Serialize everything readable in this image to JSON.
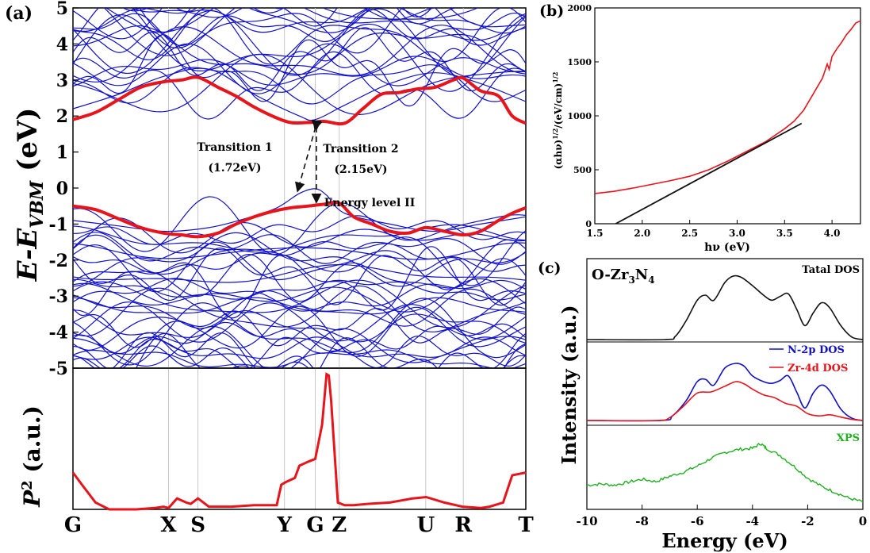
{
  "chart_data": [
    {
      "panel": "(a)",
      "type": "line",
      "subtype": "band-structure",
      "ylabel_main": "E-E",
      "ylabel_sub": "VBM",
      "ylabel_unit": " (eV)",
      "ylim": [
        -5,
        5
      ],
      "yticks": [
        -5,
        -4,
        -3,
        -2,
        -1,
        0,
        1,
        2,
        3,
        4,
        5
      ],
      "kpoint_labels": [
        "G",
        "X",
        "S",
        "Y",
        "G",
        "Z",
        "U",
        "R",
        "T"
      ],
      "kpoint_positions": [
        0,
        0.211,
        0.276,
        0.467,
        0.535,
        0.588,
        0.779,
        0.862,
        1.0
      ],
      "band_color": "#1010cc",
      "highlight_color": "#e8141b",
      "conduction_band_min": {
        "x": [
          0,
          0.05,
          0.1,
          0.15,
          0.2,
          0.24,
          0.276,
          0.32,
          0.36,
          0.4,
          0.44,
          0.48,
          0.52,
          0.555,
          0.6,
          0.64,
          0.68,
          0.72,
          0.76,
          0.8,
          0.84,
          0.862,
          0.9,
          0.94,
          0.97,
          1.0
        ],
        "y": [
          1.9,
          2.1,
          2.45,
          2.8,
          2.95,
          3.0,
          3.07,
          2.8,
          2.55,
          2.25,
          2.0,
          1.82,
          1.82,
          1.85,
          1.8,
          2.2,
          2.6,
          2.65,
          2.75,
          2.8,
          3.0,
          3.05,
          2.7,
          2.55,
          2.0,
          1.8
        ]
      },
      "valence_band_max": {
        "x": [
          0,
          0.05,
          0.1,
          0.15,
          0.2,
          0.24,
          0.276,
          0.32,
          0.36,
          0.4,
          0.44,
          0.48,
          0.52,
          0.555,
          0.588,
          0.62,
          0.66,
          0.7,
          0.74,
          0.779,
          0.82,
          0.862,
          0.9,
          0.94,
          0.97,
          1.0
        ],
        "y": [
          -0.5,
          -0.6,
          -0.85,
          -1.1,
          -1.25,
          -1.3,
          -1.35,
          -1.25,
          -1.0,
          -0.8,
          -0.65,
          -0.55,
          -0.5,
          -0.45,
          -0.42,
          -0.8,
          -1.0,
          -1.2,
          -1.25,
          -1.1,
          -1.2,
          -1.3,
          -1.2,
          -0.9,
          -0.7,
          -0.55
        ]
      },
      "annotations": [
        {
          "text": "Transition 1",
          "x": 0.41,
          "y": 0.95
        },
        {
          "text": "(1.72eV)",
          "x": 0.41,
          "y": 0.3
        },
        {
          "text": "Transition 2",
          "x": 0.7,
          "y": 0.95
        },
        {
          "text": "(2.15eV)",
          "x": 0.7,
          "y": 0.3
        },
        {
          "text": "Energy level II",
          "x": 0.675,
          "y": -0.6
        }
      ]
    },
    {
      "panel": "(a)",
      "type": "line",
      "subtype": "transition-probability",
      "ylabel": "P",
      "ylabel_sup": "2",
      "ylabel_unit": " (a.u.)",
      "ylim": [
        0,
        1
      ],
      "color": "#e8141b",
      "x": [
        0,
        0.02,
        0.05,
        0.08,
        0.1,
        0.14,
        0.18,
        0.2,
        0.211,
        0.23,
        0.25,
        0.26,
        0.276,
        0.3,
        0.35,
        0.4,
        0.45,
        0.46,
        0.47,
        0.49,
        0.5,
        0.52,
        0.535,
        0.55,
        0.56,
        0.565,
        0.57,
        0.585,
        0.6,
        0.62,
        0.65,
        0.7,
        0.75,
        0.78,
        0.82,
        0.86,
        0.9,
        0.92,
        0.95,
        0.97,
        1.0
      ],
      "y": [
        0.27,
        0.18,
        0.05,
        0.0,
        0.0,
        0.0,
        0.01,
        0.02,
        0.01,
        0.08,
        0.05,
        0.04,
        0.08,
        0.02,
        0.02,
        0.03,
        0.03,
        0.18,
        0.2,
        0.23,
        0.32,
        0.35,
        0.37,
        0.62,
        0.99,
        0.98,
        0.8,
        0.05,
        0.03,
        0.03,
        0.04,
        0.05,
        0.08,
        0.09,
        0.05,
        0.02,
        0.01,
        0.02,
        0.05,
        0.25,
        0.27
      ]
    },
    {
      "panel": "(b)",
      "type": "line",
      "subtype": "tauc-plot",
      "xlabel": "hν (eV)",
      "ylabel": "(αhν)",
      "ylabel_sup1": "1/2",
      "ylabel_mid": "/(eV/cm)",
      "ylabel_sup2": "1/2",
      "xlim": [
        1.5,
        4.3
      ],
      "ylim": [
        0,
        2000
      ],
      "xticks": [
        1.5,
        2.0,
        2.5,
        3.0,
        3.5,
        4.0
      ],
      "yticks": [
        0,
        500,
        1000,
        1500,
        2000
      ],
      "series": [
        {
          "color": "#e8141b",
          "x": [
            1.5,
            1.7,
            1.9,
            2.1,
            2.3,
            2.5,
            2.7,
            2.9,
            3.1,
            3.3,
            3.5,
            3.6,
            3.7,
            3.8,
            3.9,
            3.95,
            3.97,
            4.0,
            4.05,
            4.1,
            4.15,
            4.2,
            4.25,
            4.3
          ],
          "y": [
            280,
            300,
            330,
            365,
            400,
            440,
            500,
            580,
            670,
            760,
            880,
            950,
            1050,
            1200,
            1350,
            1480,
            1430,
            1550,
            1620,
            1680,
            1750,
            1800,
            1860,
            1880
          ]
        },
        {
          "color": "#111111",
          "x": [
            1.72,
            3.68
          ],
          "y": [
            0,
            930
          ]
        }
      ]
    },
    {
      "panel": "(c)",
      "type": "line",
      "subtype": "density-of-states",
      "title": "O-Zr",
      "title_sub1": "3",
      "title_mid": "N",
      "title_sub2": "4",
      "xlabel": "Energy (eV)",
      "ylabel": "Intensity (a.u.)",
      "xlim": [
        -10,
        0
      ],
      "xticks": [
        -10,
        -8,
        -6,
        -4,
        -2,
        0
      ],
      "series": [
        {
          "name": "Tatal DOS",
          "color": "#111111",
          "x": [
            -10,
            -7.2,
            -6.8,
            -6.4,
            -6.0,
            -5.7,
            -5.4,
            -5.0,
            -4.7,
            -4.4,
            -4.0,
            -3.6,
            -3.3,
            -3.0,
            -2.7,
            -2.4,
            -2.1,
            -1.8,
            -1.5,
            -1.2,
            -0.8,
            -0.4,
            0
          ],
          "y": [
            0,
            0,
            0.05,
            0.3,
            0.62,
            0.7,
            0.62,
            0.9,
            1.0,
            0.98,
            0.85,
            0.7,
            0.62,
            0.68,
            0.72,
            0.48,
            0.22,
            0.42,
            0.58,
            0.5,
            0.22,
            0.04,
            0
          ]
        },
        {
          "name": "N-2p DOS",
          "color": "#1010cc",
          "x": [
            -10,
            -7.3,
            -6.9,
            -6.4,
            -6.0,
            -5.7,
            -5.4,
            -5.0,
            -4.6,
            -4.3,
            -4.0,
            -3.6,
            -3.3,
            -3.0,
            -2.7,
            -2.4,
            -2.1,
            -1.8,
            -1.5,
            -1.2,
            -0.8,
            -0.4,
            0
          ],
          "y": [
            0,
            0,
            0.08,
            0.35,
            0.68,
            0.72,
            0.62,
            0.92,
            1.0,
            0.95,
            0.78,
            0.68,
            0.65,
            0.7,
            0.78,
            0.5,
            0.22,
            0.48,
            0.62,
            0.52,
            0.2,
            0.04,
            0
          ]
        },
        {
          "name": "Zr-4d DOS",
          "color": "#e8141b",
          "x": [
            -10,
            -7.5,
            -7.0,
            -6.5,
            -6.0,
            -5.5,
            -5.0,
            -4.6,
            -4.3,
            -4.0,
            -3.6,
            -3.2,
            -2.8,
            -2.4,
            -2.0,
            -1.6,
            -1.2,
            -0.8,
            -0.4,
            0
          ],
          "y": [
            0,
            0,
            0.05,
            0.25,
            0.48,
            0.5,
            0.6,
            0.68,
            0.64,
            0.55,
            0.45,
            0.4,
            0.3,
            0.25,
            0.12,
            0.08,
            0.1,
            0.06,
            0.02,
            0
          ]
        },
        {
          "name": "XPS",
          "color": "#20b020",
          "x": [
            -10,
            -9.5,
            -9.0,
            -8.5,
            -8.0,
            -7.5,
            -7.0,
            -6.5,
            -6.0,
            -5.5,
            -5.0,
            -4.5,
            -4.0,
            -3.7,
            -3.5,
            -3.0,
            -2.5,
            -2.0,
            -1.5,
            -1.0,
            -0.5,
            0
          ],
          "y": [
            0.3,
            0.32,
            0.3,
            0.35,
            0.4,
            0.36,
            0.45,
            0.52,
            0.62,
            0.75,
            0.85,
            0.9,
            0.92,
            1.0,
            0.92,
            0.8,
            0.62,
            0.42,
            0.28,
            0.18,
            0.08,
            0.02
          ]
        }
      ]
    }
  ],
  "labels": {
    "panel_a": "(a)",
    "panel_b": "(b)",
    "panel_c": "(c)"
  }
}
